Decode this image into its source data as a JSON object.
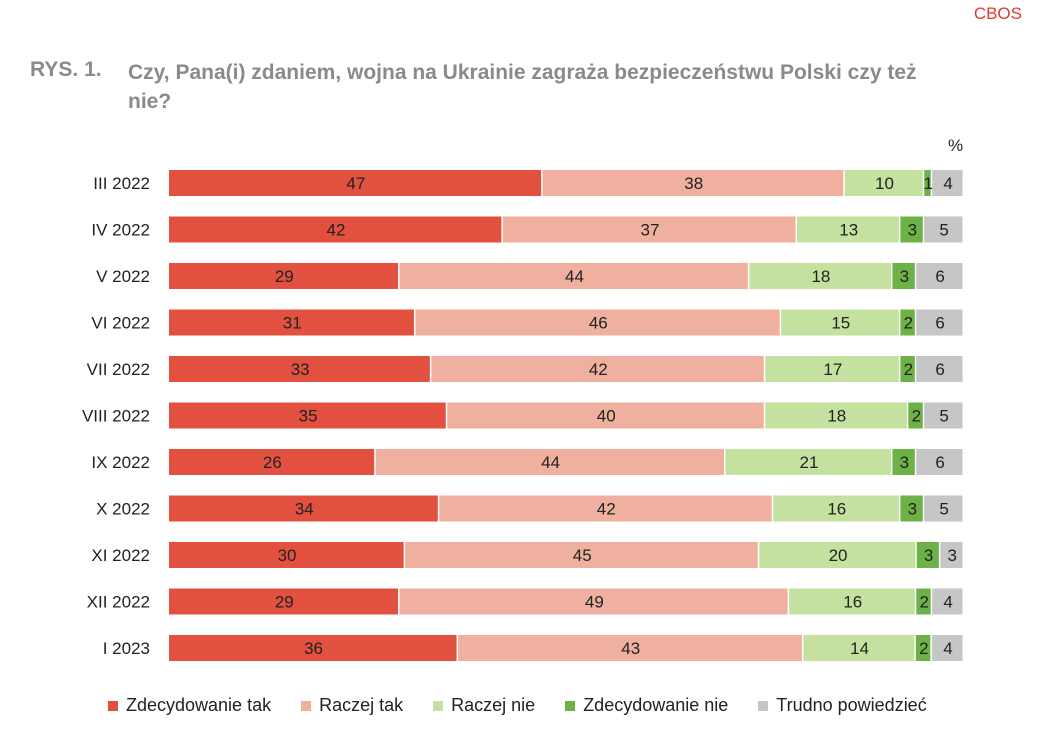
{
  "brand": "CBOS",
  "figure": {
    "label": "RYS. 1.",
    "title": "Czy, Pana(i) zdaniem, wojna na Ukrainie zagraża bezpieczeństwu Polski czy też nie?",
    "unit": "%"
  },
  "chart_data": {
    "type": "bar",
    "orientation": "horizontal",
    "stacked": true,
    "title": "Czy, Pana(i) zdaniem, wojna na Ukrainie zagraża bezpieczeństwu Polski czy też nie?",
    "xlim": [
      0,
      100
    ],
    "grid": false,
    "legend_position": "bottom",
    "categories": [
      "III 2022",
      "IV 2022",
      "V 2022",
      "VI 2022",
      "VII 2022",
      "VIII 2022",
      "IX 2022",
      "X 2022",
      "XI 2022",
      "XII 2022",
      "I 2023"
    ],
    "series": [
      {
        "name": "Zdecydowanie tak",
        "color": "#e2513f",
        "values": [
          47,
          42,
          29,
          31,
          33,
          35,
          26,
          34,
          30,
          29,
          36
        ]
      },
      {
        "name": "Raczej tak",
        "color": "#efb09f",
        "values": [
          38,
          37,
          44,
          46,
          42,
          40,
          44,
          42,
          45,
          49,
          43
        ]
      },
      {
        "name": "Raczej nie",
        "color": "#c5e1a0",
        "values": [
          10,
          13,
          18,
          15,
          17,
          18,
          21,
          16,
          20,
          16,
          14
        ]
      },
      {
        "name": "Zdecydowanie nie",
        "color": "#6cb246",
        "values": [
          1,
          3,
          3,
          2,
          2,
          2,
          3,
          3,
          3,
          2,
          2
        ]
      },
      {
        "name": "Trudno powiedzieć",
        "color": "#c6c6c6",
        "values": [
          4,
          5,
          6,
          6,
          6,
          5,
          6,
          5,
          3,
          4,
          4
        ]
      }
    ]
  }
}
